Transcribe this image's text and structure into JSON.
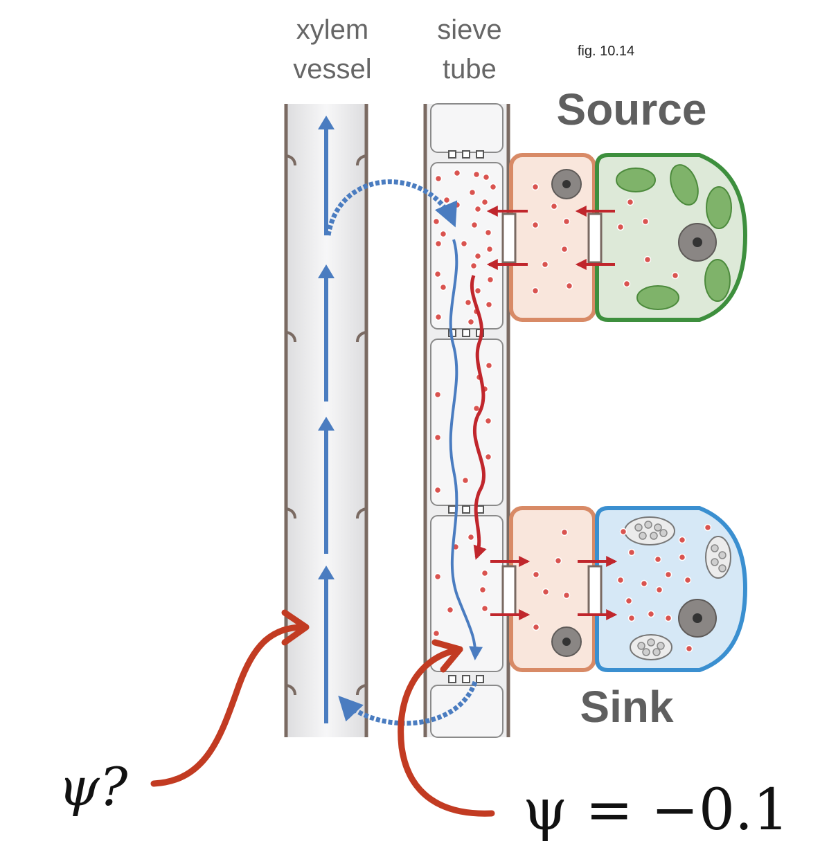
{
  "labels": {
    "xylem_line1": "xylem",
    "xylem_line2": "vessel",
    "sieve_line1": "sieve",
    "sieve_line2": "tube",
    "figure_ref": "fig. 10.14",
    "source": "Source",
    "sink": "Sink"
  },
  "annotations": {
    "psi_xylem": "ψ?",
    "psi_sieve": "ψ = −0.1"
  },
  "colors": {
    "water_flow": "#4a7cc0",
    "sugar_flow": "#c0262c",
    "annotation_arrow": "#c23b22",
    "wall": "#7a6a62",
    "tube_fill": "#eeeeef",
    "companion_border": "#d88a66",
    "companion_fill": "#f9e6dc",
    "source_border": "#3d8f3d",
    "source_fill": "#dde9d8",
    "sink_border": "#3a8fd0",
    "sink_fill": "#d6e8f6",
    "chloroplast": "#7fb36a",
    "nucleus": "#8a8684",
    "sugar_dot": "#d9534f"
  },
  "icons": [
    "nucleus-icon",
    "chloroplast-icon",
    "starch-granule-icon",
    "sugar-molecule-icon"
  ]
}
